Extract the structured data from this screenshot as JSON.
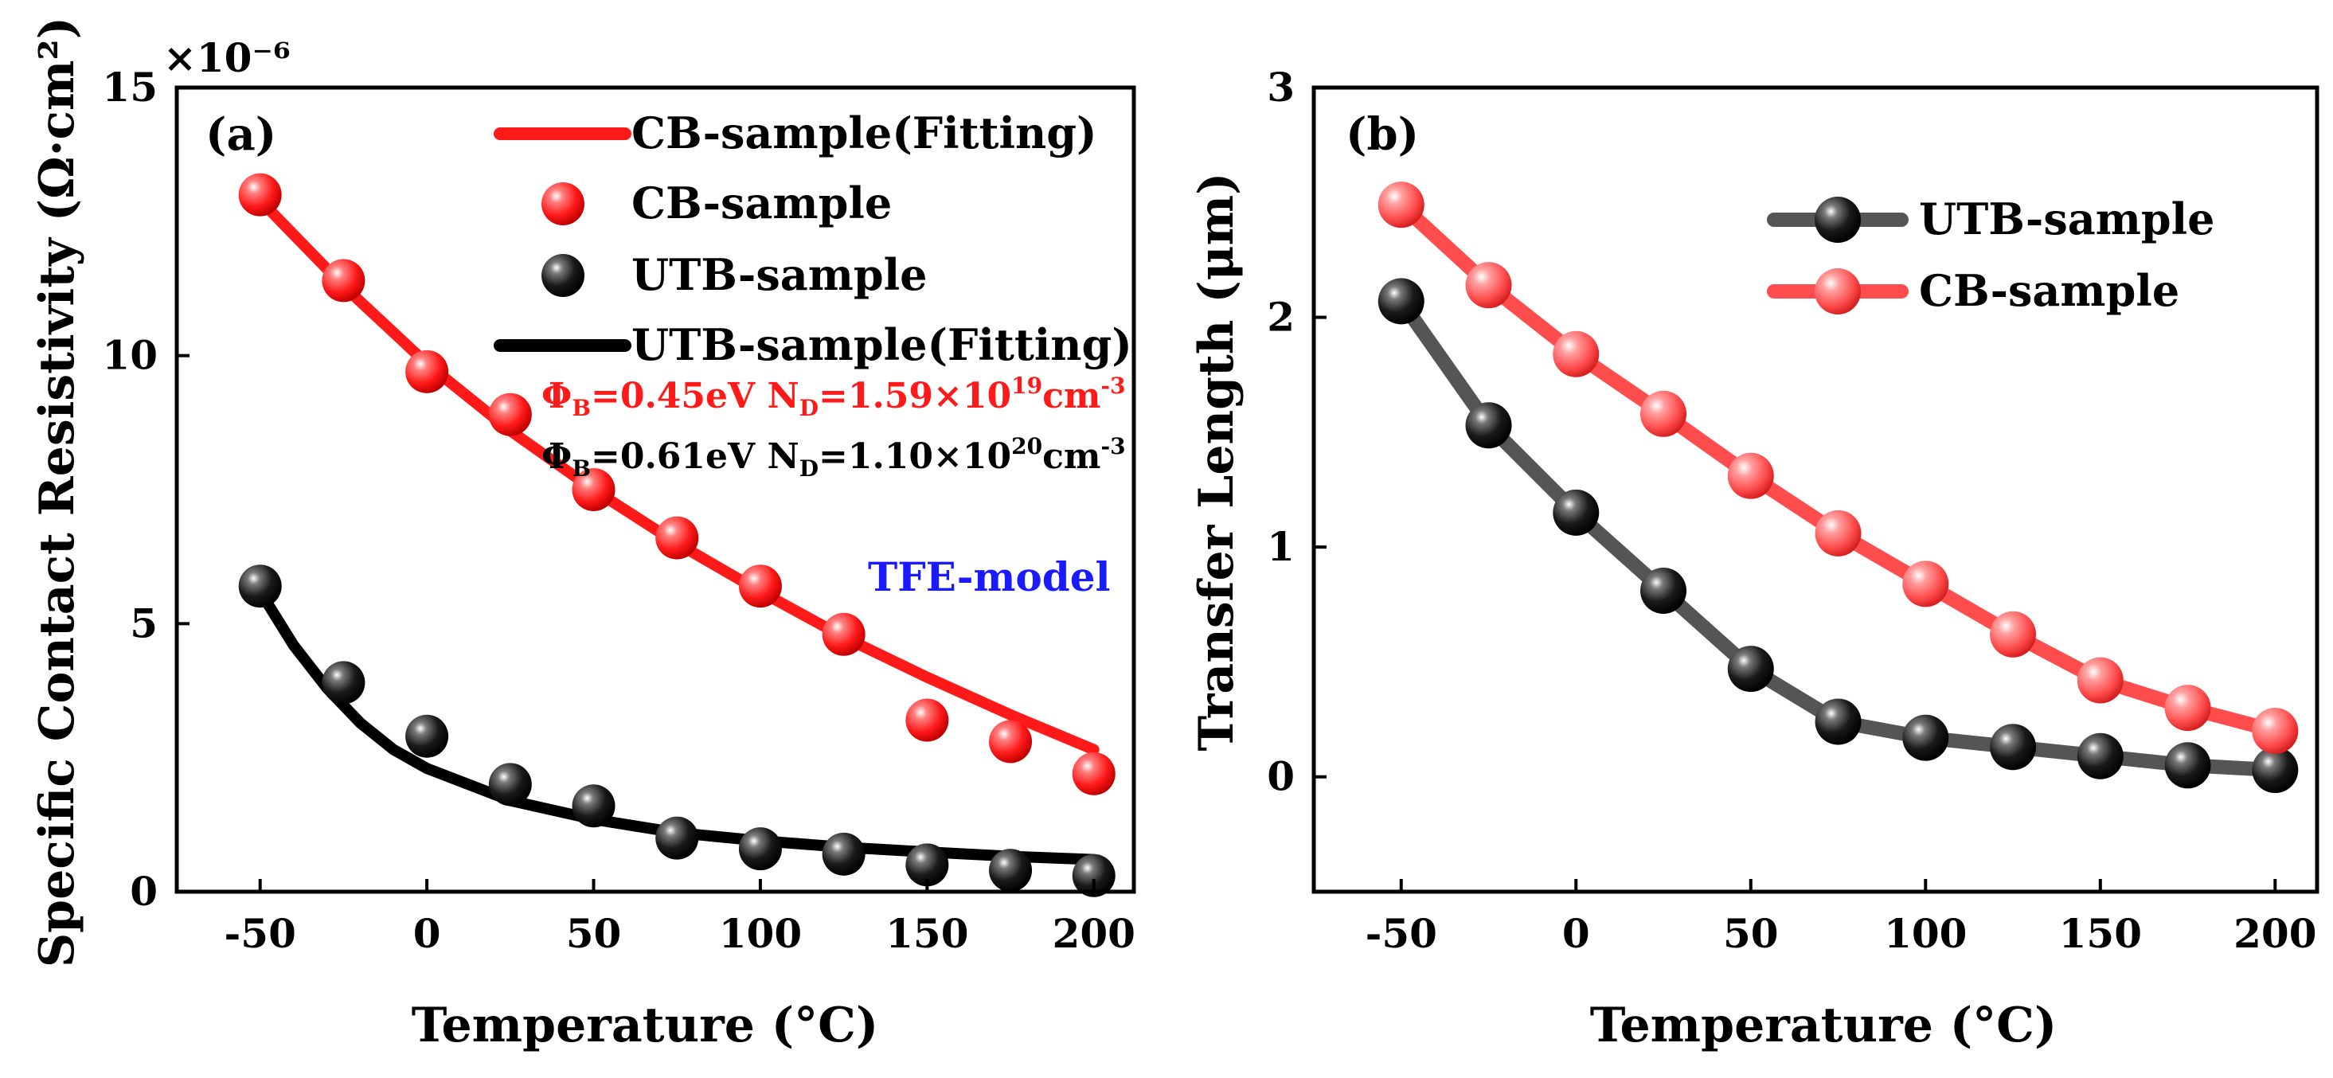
{
  "chart_data": [
    {
      "type": "scatter",
      "panel_label": "(a)",
      "xlabel": "Temperature (°C)",
      "ylabel": "Specific Contact Resistivity (Ω·cm²)",
      "y_multiplier": "×10⁻⁶",
      "xlim": [
        -75,
        212
      ],
      "ylim": [
        0,
        15
      ],
      "xticks": [
        -50,
        0,
        50,
        100,
        150,
        200
      ],
      "yticks": [
        0,
        5,
        10,
        15
      ],
      "x": [
        -50,
        -25,
        0,
        25,
        50,
        75,
        100,
        125,
        150,
        175,
        200
      ],
      "series": [
        {
          "name": "CB-sample",
          "color": "#ff1a1a",
          "values": [
            13.0,
            11.4,
            9.7,
            8.9,
            7.5,
            6.6,
            5.7,
            4.8,
            3.2,
            2.8,
            2.2
          ]
        },
        {
          "name": "UTB-sample",
          "color": "#1a1a1a",
          "values": [
            5.7,
            3.9,
            2.9,
            2.0,
            1.6,
            1.0,
            0.8,
            0.7,
            0.5,
            0.4,
            0.3
          ]
        }
      ],
      "fits": [
        {
          "name": "CB-sample(Fitting)",
          "color": "#ff1a1a",
          "x": [
            -50,
            -25,
            0,
            25,
            50,
            75,
            100,
            125,
            150,
            175,
            200
          ],
          "values": [
            12.9,
            11.3,
            9.85,
            8.6,
            7.5,
            6.5,
            5.6,
            4.75,
            4.0,
            3.3,
            2.65
          ]
        },
        {
          "name": "UTB-sample(Fitting)",
          "color": "#000000",
          "x": [
            -50,
            -40,
            -30,
            -20,
            -10,
            0,
            25,
            50,
            75,
            100,
            125,
            150,
            175,
            200
          ],
          "values": [
            5.6,
            4.6,
            3.8,
            3.15,
            2.65,
            2.3,
            1.7,
            1.35,
            1.1,
            0.95,
            0.83,
            0.74,
            0.66,
            0.6
          ]
        }
      ],
      "legend_order": [
        "CB-sample(Fitting)",
        "CB-sample",
        "UTB-sample",
        "UTB-sample(Fitting)"
      ],
      "annotations": {
        "cb_params": {
          "phi": "Φ",
          "phi_sub": "B",
          "phi_val": "=0.45eV N",
          "nd_sub": "D",
          "nd_val": "=1.59×10",
          "exp": "19",
          "unit": "cm",
          "unit_exp": "-3"
        },
        "utb_params": {
          "phi": "Φ",
          "phi_sub": "B",
          "phi_val": "=0.61eV N",
          "nd_sub": "D",
          "nd_val": "=1.10×10",
          "exp": "20",
          "unit": "cm",
          "unit_exp": "-3"
        },
        "model": "TFE-model"
      },
      "annotation_colors": {
        "cb": "#ff1a1a",
        "utb": "#000000",
        "model": "#1a1aff"
      }
    },
    {
      "type": "line",
      "panel_label": "(b)",
      "xlabel": "Temperature (°C)",
      "ylabel": "Transfer Length (μm)",
      "xlim": [
        -75,
        212
      ],
      "ylim": [
        -0.5,
        3
      ],
      "xticks": [
        -50,
        0,
        50,
        100,
        150,
        200
      ],
      "yticks": [
        0,
        1,
        2,
        3
      ],
      "x": [
        -50,
        -25,
        0,
        25,
        50,
        75,
        100,
        125,
        150,
        175,
        200
      ],
      "series": [
        {
          "name": "UTB-sample",
          "color": "#1a1a1a",
          "line_color": "#555555",
          "values": [
            2.07,
            1.53,
            1.15,
            0.81,
            0.47,
            0.24,
            0.17,
            0.13,
            0.09,
            0.05,
            0.03
          ]
        },
        {
          "name": "CB-sample",
          "color": "#ff4d4d",
          "line_color": "#ff4d4d",
          "values": [
            2.49,
            2.14,
            1.84,
            1.58,
            1.31,
            1.06,
            0.84,
            0.62,
            0.42,
            0.3,
            0.2
          ]
        }
      ]
    }
  ]
}
